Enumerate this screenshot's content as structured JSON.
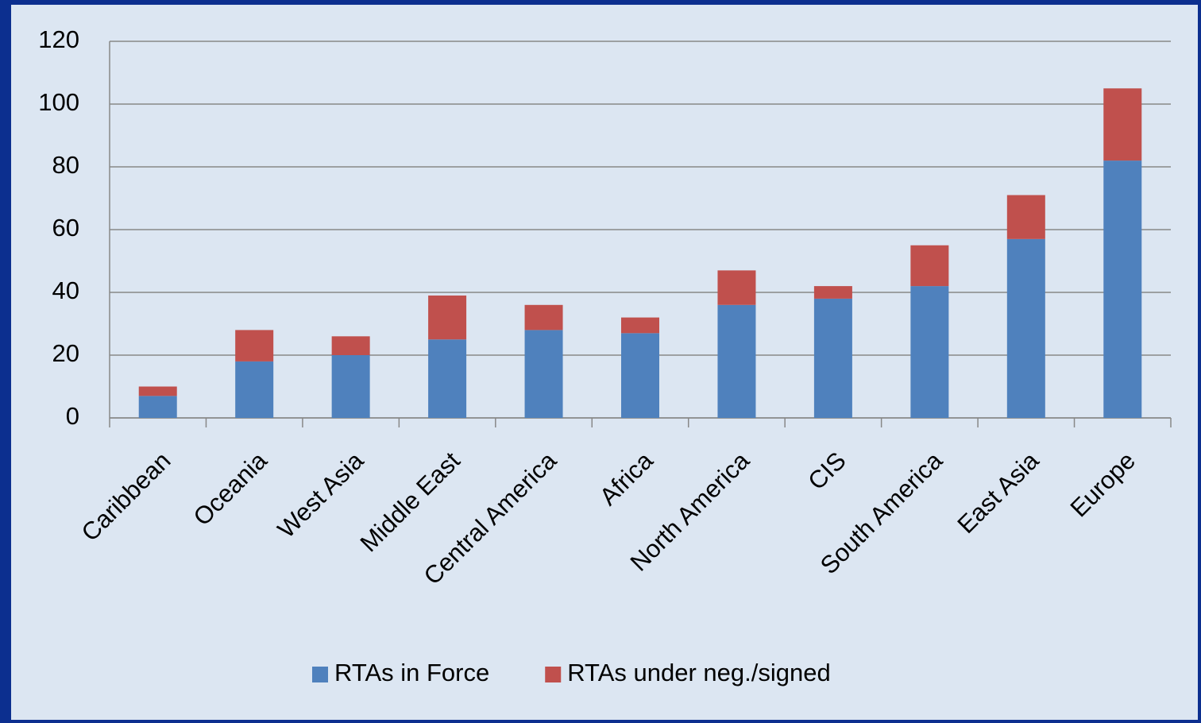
{
  "chart_data": {
    "type": "stacked_bar",
    "categories": [
      "Caribbean",
      "Oceania",
      "West Asia",
      "Middle East",
      "Central America",
      "Africa",
      "North America",
      "CIS",
      "South America",
      "East Asia",
      "Europe"
    ],
    "series": [
      {
        "name": "RTAs in Force",
        "color": "#4f81bd",
        "values": [
          7,
          18,
          20,
          25,
          28,
          27,
          36,
          38,
          42,
          57,
          82
        ]
      },
      {
        "name": "RTAs under neg./signed",
        "color": "#c0504d",
        "values": [
          3,
          10,
          6,
          14,
          8,
          5,
          11,
          4,
          13,
          14,
          23
        ]
      }
    ],
    "ylim": [
      0,
      120
    ],
    "yticks": [
      0,
      20,
      40,
      60,
      80,
      100,
      120
    ],
    "grid": true,
    "legend": "bottom"
  }
}
